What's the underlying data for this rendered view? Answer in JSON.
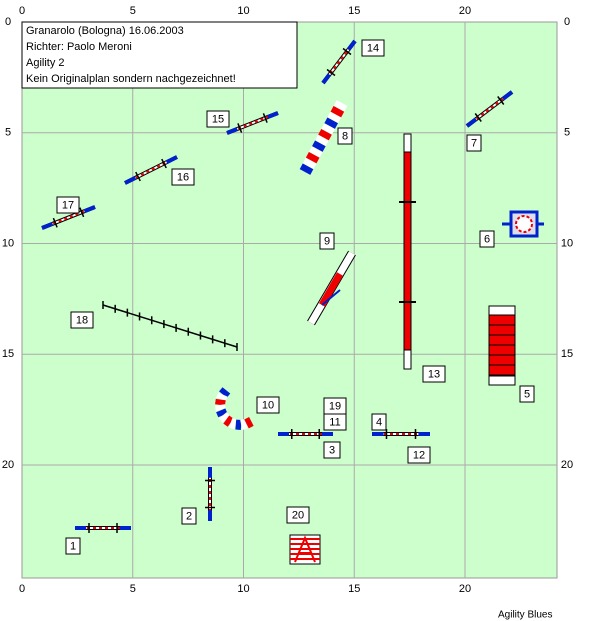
{
  "header": {
    "lines": [
      "Granarolo (Bologna) 16.06.2003",
      "Richter: Paolo Meroni",
      "Agility 2",
      "Kein Originalplan sondern nachgezeichnet!"
    ]
  },
  "axes": {
    "x_ticks": [
      0,
      5,
      10,
      15,
      20
    ],
    "y_ticks": [
      0,
      5,
      10,
      15,
      20
    ]
  },
  "obstacles": [
    {
      "label": "14"
    },
    {
      "label": "8"
    },
    {
      "label": "7"
    },
    {
      "label": "15"
    },
    {
      "label": "16"
    },
    {
      "label": "17"
    },
    {
      "label": "6"
    },
    {
      "label": "9"
    },
    {
      "label": "18"
    },
    {
      "label": "13"
    },
    {
      "label": "5"
    },
    {
      "label": "10"
    },
    {
      "label": "19"
    },
    {
      "label": "11"
    },
    {
      "label": "3"
    },
    {
      "label": "4"
    },
    {
      "label": "12"
    },
    {
      "label": "2"
    },
    {
      "label": "20"
    },
    {
      "label": "1"
    }
  ],
  "footer": "Agility Blues"
}
